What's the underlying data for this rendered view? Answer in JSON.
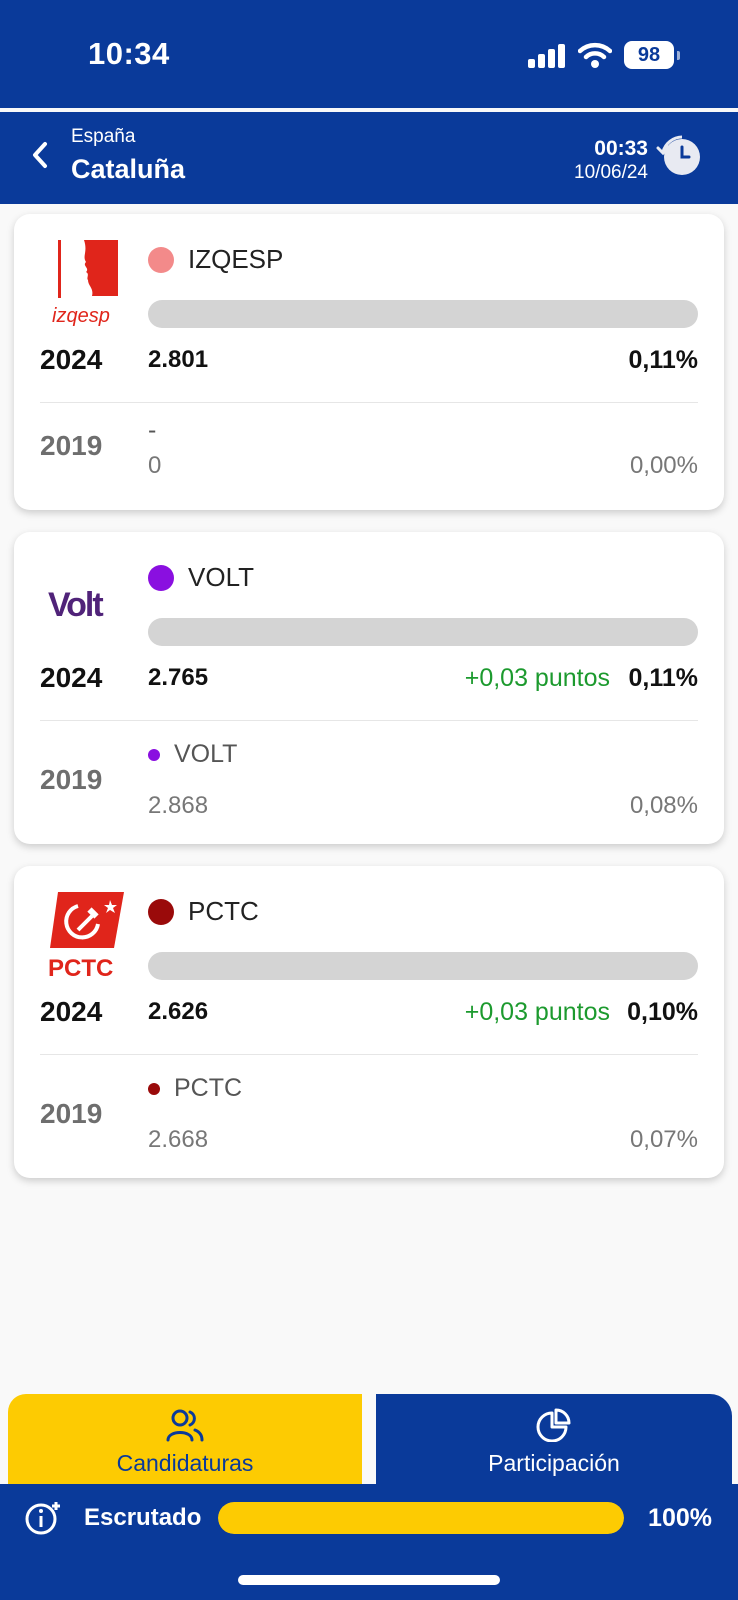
{
  "status_bar": {
    "time": "10:34",
    "battery": "98"
  },
  "header": {
    "breadcrumb": "España",
    "title": "Cataluña",
    "update_time": "00:33",
    "update_date": "10/06/24"
  },
  "parties": [
    {
      "name": "IZQESP",
      "logo_text": "izqesp",
      "color": "#f38a8a",
      "year_current": "2024",
      "votes_current": "2.801",
      "change": "",
      "percent_current": "0,11%",
      "year_previous": "2019",
      "name_previous": "-",
      "votes_previous": "0",
      "percent_previous": "0,00%",
      "bar_fill": 0.0011
    },
    {
      "name": "VOLT",
      "logo_text": "Volt",
      "color": "#8a0fe0",
      "year_current": "2024",
      "votes_current": "2.765",
      "change": "+0,03 puntos",
      "percent_current": "0,11%",
      "year_previous": "2019",
      "name_previous": "VOLT",
      "votes_previous": "2.868",
      "percent_previous": "0,08%",
      "bar_fill": 0.0011
    },
    {
      "name": "PCTC",
      "logo_text": "PCTC",
      "color": "#9a0a0a",
      "year_current": "2024",
      "votes_current": "2.626",
      "change": "+0,03 puntos",
      "percent_current": "0,10%",
      "year_previous": "2019",
      "name_previous": "PCTC",
      "votes_previous": "2.668",
      "percent_previous": "0,07%",
      "bar_fill": 0.001
    }
  ],
  "tabs": {
    "candidaturas": "Candidaturas",
    "participacion": "Participación"
  },
  "scrutiny": {
    "label": "Escrutado",
    "percent": "100%",
    "fill": 1.0
  },
  "colors": {
    "primary": "#0a3a9a",
    "accent": "#fdcb02",
    "positive": "#1c9a2e"
  }
}
